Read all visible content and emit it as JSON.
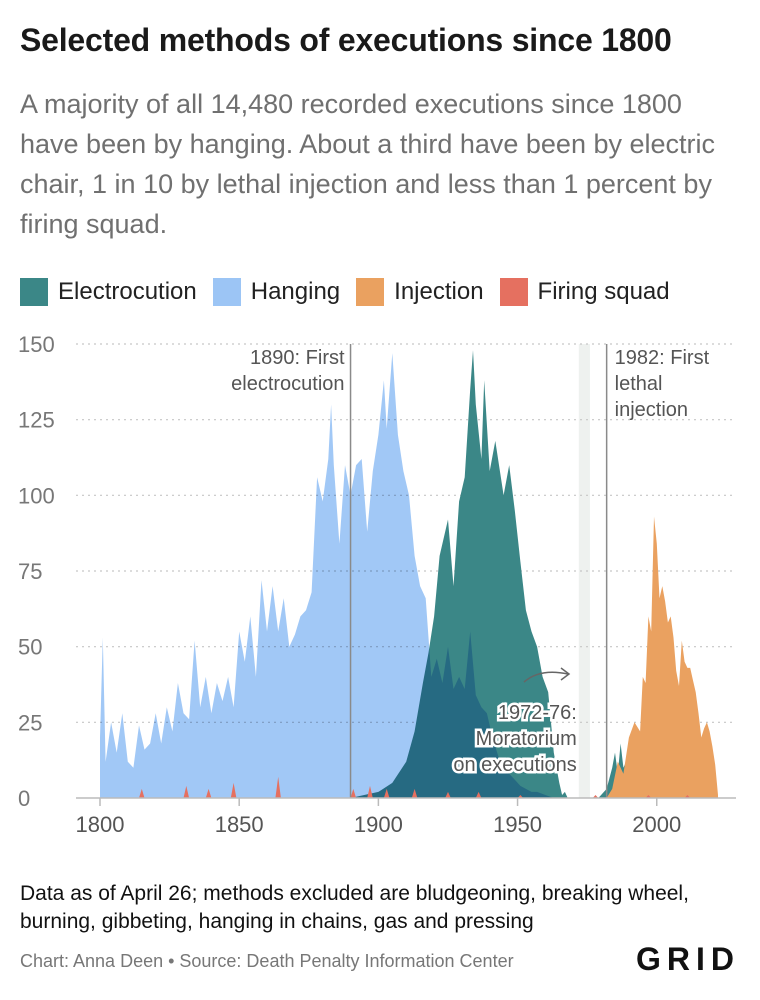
{
  "header": {
    "title": "Selected methods of executions since 1800",
    "subtitle": "A majority of all 14,480 recorded executions since 1800 have been by hanging. About a third have been by electric chair, 1 in 10 by lethal injection and less than 1 percent by firing squad."
  },
  "footer": {
    "note": "Data as of April 26; methods excluded are bludgeoning, breaking wheel, burning, gibbeting, hanging in chains, gas and pressing",
    "credit": "Chart: Anna Deen • Source: Death Penalty Information Center",
    "logo": "GRID"
  },
  "chart_data": {
    "type": "area",
    "xlim": [
      1800,
      2022
    ],
    "ylim": [
      0,
      150
    ],
    "x_ticks": [
      "1800",
      "1850",
      "1900",
      "1950",
      "2000"
    ],
    "y_ticks": [
      "0",
      "25",
      "50",
      "75",
      "100",
      "125",
      "150"
    ],
    "grid": true,
    "legend_position": "top",
    "series": [
      {
        "name": "Electrocution",
        "color": "#3b8787",
        "points": [
          [
            1890,
            0
          ],
          [
            1900,
            2
          ],
          [
            1905,
            5
          ],
          [
            1910,
            12
          ],
          [
            1913,
            22
          ],
          [
            1916,
            38
          ],
          [
            1918,
            48
          ],
          [
            1920,
            60
          ],
          [
            1922,
            80
          ],
          [
            1925,
            92
          ],
          [
            1927,
            70
          ],
          [
            1929,
            98
          ],
          [
            1931,
            106
          ],
          [
            1933,
            135
          ],
          [
            1934,
            148
          ],
          [
            1935,
            130
          ],
          [
            1937,
            112
          ],
          [
            1938,
            138
          ],
          [
            1940,
            108
          ],
          [
            1942,
            118
          ],
          [
            1945,
            100
          ],
          [
            1947,
            110
          ],
          [
            1949,
            95
          ],
          [
            1951,
            78
          ],
          [
            1953,
            62
          ],
          [
            1955,
            55
          ],
          [
            1957,
            50
          ],
          [
            1959,
            40
          ],
          [
            1961,
            35
          ],
          [
            1963,
            15
          ],
          [
            1965,
            5
          ],
          [
            1966,
            1
          ],
          [
            1967,
            2
          ],
          [
            1968,
            0
          ],
          [
            1979,
            0
          ],
          [
            1980,
            1
          ],
          [
            1982,
            3
          ],
          [
            1984,
            10
          ],
          [
            1985,
            15
          ],
          [
            1986,
            8
          ],
          [
            1987,
            18
          ],
          [
            1988,
            10
          ],
          [
            1990,
            14
          ],
          [
            1992,
            12
          ],
          [
            1994,
            6
          ],
          [
            1996,
            7
          ],
          [
            1998,
            5
          ],
          [
            2000,
            3
          ],
          [
            2002,
            2
          ],
          [
            2004,
            1
          ],
          [
            2006,
            1
          ],
          [
            2008,
            1
          ],
          [
            2010,
            2
          ],
          [
            2013,
            1
          ],
          [
            2016,
            0
          ],
          [
            2019,
            1
          ],
          [
            2020,
            1
          ],
          [
            2022,
            0
          ]
        ]
      },
      {
        "name": "Hanging",
        "color": "#9cc5f5",
        "points": [
          [
            1800,
            20
          ],
          [
            1801,
            53
          ],
          [
            1802,
            12
          ],
          [
            1804,
            25
          ],
          [
            1806,
            15
          ],
          [
            1808,
            28
          ],
          [
            1810,
            12
          ],
          [
            1812,
            10
          ],
          [
            1814,
            24
          ],
          [
            1816,
            16
          ],
          [
            1818,
            18
          ],
          [
            1820,
            28
          ],
          [
            1822,
            18
          ],
          [
            1824,
            30
          ],
          [
            1826,
            22
          ],
          [
            1828,
            38
          ],
          [
            1830,
            28
          ],
          [
            1832,
            26
          ],
          [
            1834,
            52
          ],
          [
            1836,
            30
          ],
          [
            1838,
            40
          ],
          [
            1840,
            28
          ],
          [
            1842,
            38
          ],
          [
            1844,
            32
          ],
          [
            1846,
            40
          ],
          [
            1848,
            30
          ],
          [
            1850,
            55
          ],
          [
            1852,
            45
          ],
          [
            1854,
            60
          ],
          [
            1856,
            40
          ],
          [
            1858,
            72
          ],
          [
            1860,
            55
          ],
          [
            1862,
            70
          ],
          [
            1864,
            55
          ],
          [
            1866,
            66
          ],
          [
            1868,
            50
          ],
          [
            1870,
            54
          ],
          [
            1872,
            60
          ],
          [
            1874,
            62
          ],
          [
            1876,
            68
          ],
          [
            1878,
            106
          ],
          [
            1880,
            98
          ],
          [
            1882,
            112
          ],
          [
            1883,
            130
          ],
          [
            1884,
            110
          ],
          [
            1886,
            84
          ],
          [
            1888,
            110
          ],
          [
            1890,
            100
          ],
          [
            1892,
            110
          ],
          [
            1894,
            112
          ],
          [
            1896,
            88
          ],
          [
            1898,
            108
          ],
          [
            1900,
            120
          ],
          [
            1902,
            138
          ],
          [
            1903,
            122
          ],
          [
            1905,
            147
          ],
          [
            1907,
            120
          ],
          [
            1909,
            108
          ],
          [
            1911,
            100
          ],
          [
            1913,
            80
          ],
          [
            1915,
            70
          ],
          [
            1917,
            66
          ],
          [
            1919,
            40
          ],
          [
            1921,
            46
          ],
          [
            1923,
            38
          ],
          [
            1925,
            50
          ],
          [
            1927,
            36
          ],
          [
            1929,
            40
          ],
          [
            1931,
            36
          ],
          [
            1933,
            55
          ],
          [
            1935,
            34
          ],
          [
            1937,
            30
          ],
          [
            1939,
            28
          ],
          [
            1941,
            20
          ],
          [
            1943,
            14
          ],
          [
            1945,
            10
          ],
          [
            1947,
            8
          ],
          [
            1949,
            6
          ],
          [
            1951,
            4
          ],
          [
            1953,
            3
          ],
          [
            1955,
            2
          ],
          [
            1957,
            2
          ],
          [
            1960,
            1
          ],
          [
            1963,
            0
          ],
          [
            1965,
            0
          ]
        ]
      },
      {
        "name": "Injection",
        "color": "#eaa160",
        "points": [
          [
            1982,
            0
          ],
          [
            1984,
            3
          ],
          [
            1986,
            12
          ],
          [
            1988,
            8
          ],
          [
            1990,
            20
          ],
          [
            1992,
            25
          ],
          [
            1994,
            22
          ],
          [
            1995,
            40
          ],
          [
            1996,
            38
          ],
          [
            1997,
            60
          ],
          [
            1998,
            55
          ],
          [
            1999,
            93
          ],
          [
            2000,
            84
          ],
          [
            2001,
            66
          ],
          [
            2002,
            70
          ],
          [
            2003,
            65
          ],
          [
            2004,
            58
          ],
          [
            2005,
            60
          ],
          [
            2006,
            53
          ],
          [
            2007,
            42
          ],
          [
            2008,
            37
          ],
          [
            2009,
            52
          ],
          [
            2010,
            45
          ],
          [
            2011,
            43
          ],
          [
            2012,
            43
          ],
          [
            2013,
            39
          ],
          [
            2014,
            35
          ],
          [
            2015,
            28
          ],
          [
            2016,
            20
          ],
          [
            2017,
            23
          ],
          [
            2018,
            25
          ],
          [
            2019,
            22
          ],
          [
            2020,
            17
          ],
          [
            2021,
            11
          ],
          [
            2022,
            1
          ]
        ]
      },
      {
        "name": "Firing squad",
        "color": "#e57060",
        "points": [
          [
            1814,
            0
          ],
          [
            1815,
            3
          ],
          [
            1816,
            0
          ],
          [
            1830,
            0
          ],
          [
            1831,
            4
          ],
          [
            1832,
            0
          ],
          [
            1838,
            0
          ],
          [
            1839,
            3
          ],
          [
            1840,
            0
          ],
          [
            1847,
            0
          ],
          [
            1848,
            5
          ],
          [
            1849,
            0
          ],
          [
            1863,
            0
          ],
          [
            1864,
            7
          ],
          [
            1865,
            0
          ],
          [
            1890,
            0
          ],
          [
            1891,
            3
          ],
          [
            1892,
            0
          ],
          [
            1896,
            0
          ],
          [
            1897,
            4
          ],
          [
            1898,
            0
          ],
          [
            1902,
            0
          ],
          [
            1903,
            3
          ],
          [
            1904,
            0
          ],
          [
            1912,
            0
          ],
          [
            1913,
            3
          ],
          [
            1914,
            0
          ],
          [
            1924,
            0
          ],
          [
            1925,
            2
          ],
          [
            1926,
            0
          ],
          [
            1935,
            0
          ],
          [
            1936,
            2
          ],
          [
            1937,
            0
          ],
          [
            1950,
            0
          ],
          [
            1951,
            1
          ],
          [
            1952,
            0
          ],
          [
            1977,
            0
          ],
          [
            1978,
            1
          ],
          [
            1979,
            0
          ],
          [
            1996,
            0
          ],
          [
            1997,
            1
          ],
          [
            1998,
            0
          ],
          [
            2010,
            0
          ],
          [
            2011,
            1
          ],
          [
            2012,
            0
          ]
        ]
      }
    ],
    "annotations": [
      {
        "id": "electrocution",
        "lines": [
          "1890: First",
          "electrocution"
        ],
        "x": 1890
      },
      {
        "id": "injection",
        "lines": [
          "1982: First",
          "lethal",
          "injection"
        ],
        "x": 1982
      },
      {
        "id": "moratorium",
        "lines": [
          "1972-76:",
          "Moratorium",
          "on executions"
        ],
        "x_start": 1972,
        "x_end": 1976
      }
    ]
  }
}
